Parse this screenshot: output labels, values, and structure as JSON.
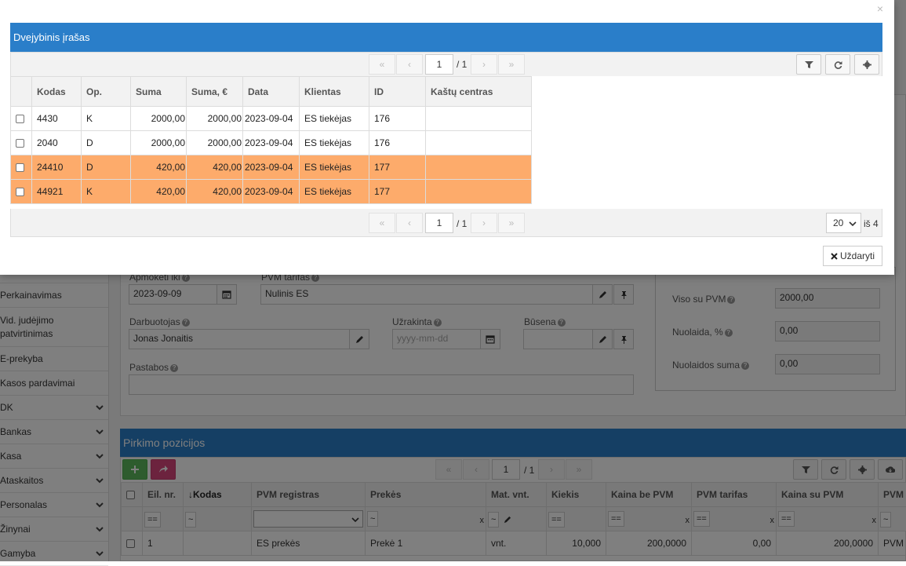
{
  "sidebar": {
    "items": [
      {
        "label": "Perkainavimas",
        "expandable": false
      },
      {
        "label": "Vid. judėjimo patvirtinimas",
        "expandable": false
      },
      {
        "label": "E-prekyba",
        "expandable": false
      },
      {
        "label": "Kasos pardavimai",
        "expandable": false
      },
      {
        "label": "DK",
        "expandable": true
      },
      {
        "label": "Bankas",
        "expandable": true
      },
      {
        "label": "Kasa",
        "expandable": true
      },
      {
        "label": "Ataskaitos",
        "expandable": true
      },
      {
        "label": "Personalas",
        "expandable": true
      },
      {
        "label": "Žinynai",
        "expandable": true
      },
      {
        "label": "Gamyba",
        "expandable": true
      }
    ]
  },
  "form": {
    "apmoketi_iki": {
      "label": "Apmokėti iki",
      "value": "2023-09-09"
    },
    "pvm_tarifas": {
      "label": "PVM tarifas",
      "value": "Nulinis ES"
    },
    "darbuotojas": {
      "label": "Darbuotojas",
      "value": "Jonas Jonaitis"
    },
    "uzrakinta": {
      "label": "Užrakinta",
      "placeholder": "yyyy-mm-dd"
    },
    "busena": {
      "label": "Būsena",
      "value": ""
    },
    "pastabos": {
      "label": "Pastabos",
      "value": ""
    }
  },
  "totals": {
    "viso_su_pvm": {
      "label": "Viso su PVM",
      "value": "2000,00"
    },
    "nuolaida_proc": {
      "label": "Nuolaida, %",
      "value": "0,00"
    },
    "nuolaidos_suma": {
      "label": "Nuolaidos suma",
      "value": "0,00"
    }
  },
  "positions": {
    "title": "Pirkimo pozicijos",
    "pager": {
      "page": "1",
      "total": "/ 1"
    },
    "columns": [
      "Eil. nr.",
      "Kodas",
      "PVM registras",
      "Prekės",
      "Mat. vnt.",
      "Kiekis",
      "Kaina be PVM",
      "PVM tarifas",
      "Kaina su PVM",
      "PVM"
    ],
    "sort_indicator": "↓",
    "filter_ops": {
      "eq": "==",
      "tilde": "~",
      "clear": "x"
    },
    "rows": [
      {
        "nr": "1",
        "kodas": "",
        "pvm_registras": "ES prekės",
        "preke": "Prekė 1",
        "mat": "vnt.",
        "kiekis": "10,000",
        "kaina_be": "200,0000",
        "pvm_tarifas": "0,00",
        "kaina_su": "200,0000",
        "pvm": "PVM"
      }
    ]
  },
  "modal": {
    "title": "Dvejybinis įrašas",
    "close_glyph": "×",
    "pager_top": {
      "page": "1",
      "total": "/ 1"
    },
    "pager_bottom": {
      "page": "1",
      "total": "/ 1"
    },
    "page_size": "20",
    "of_count": "iš 4",
    "columns": [
      "Kodas",
      "Op.",
      "Suma",
      "Suma, €",
      "Data",
      "Klientas",
      "ID",
      "Kaštų centras"
    ],
    "rows": [
      {
        "kodas": "4430",
        "op": "K",
        "suma": "2000,00",
        "suma_eur": "2000,00",
        "data": "2023-09-04",
        "klientas": "ES tiekėjas",
        "id": "176",
        "kastu": "",
        "highlight": false
      },
      {
        "kodas": "2040",
        "op": "D",
        "suma": "2000,00",
        "suma_eur": "2000,00",
        "data": "2023-09-04",
        "klientas": "ES tiekėjas",
        "id": "176",
        "kastu": "",
        "highlight": false
      },
      {
        "kodas": "24410",
        "op": "D",
        "suma": "420,00",
        "suma_eur": "420,00",
        "data": "2023-09-04",
        "klientas": "ES tiekėjas",
        "id": "177",
        "kastu": "",
        "highlight": true
      },
      {
        "kodas": "44921",
        "op": "K",
        "suma": "420,00",
        "suma_eur": "420,00",
        "data": "2023-09-04",
        "klientas": "ES tiekėjas",
        "id": "177",
        "kastu": "",
        "highlight": true
      }
    ],
    "close_button": "Uždaryti"
  },
  "colors": {
    "accent": "#2a7ec9",
    "highlight": "#fdab6b",
    "add": "#5cb85c",
    "share": "#d9467c"
  }
}
